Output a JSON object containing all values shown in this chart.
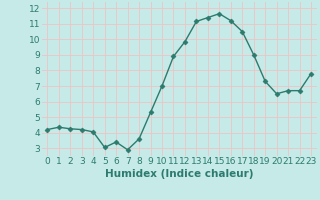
{
  "x": [
    0,
    1,
    2,
    3,
    4,
    5,
    6,
    7,
    8,
    9,
    10,
    11,
    12,
    13,
    14,
    15,
    16,
    17,
    18,
    19,
    20,
    21,
    22,
    23
  ],
  "y": [
    4.2,
    4.35,
    4.25,
    4.2,
    4.05,
    3.05,
    3.4,
    2.9,
    3.6,
    5.3,
    7.0,
    8.9,
    9.85,
    11.15,
    11.4,
    11.65,
    11.2,
    10.5,
    9.0,
    7.3,
    6.5,
    6.7,
    6.7,
    7.8
  ],
  "line_color": "#2d7b6e",
  "marker": "D",
  "marker_size": 2.5,
  "bg_color": "#c5eae7",
  "grid_color": "#e8c8c8",
  "xlabel": "Humidex (Indice chaleur)",
  "xlim": [
    -0.5,
    23.5
  ],
  "ylim": [
    2.5,
    12.4
  ],
  "yticks": [
    3,
    4,
    5,
    6,
    7,
    8,
    9,
    10,
    11,
    12
  ],
  "xticks": [
    0,
    1,
    2,
    3,
    4,
    5,
    6,
    7,
    8,
    9,
    10,
    11,
    12,
    13,
    14,
    15,
    16,
    17,
    18,
    19,
    20,
    21,
    22,
    23
  ],
  "tick_font_size": 6.5,
  "label_font_size": 7.5,
  "linewidth": 1.0
}
